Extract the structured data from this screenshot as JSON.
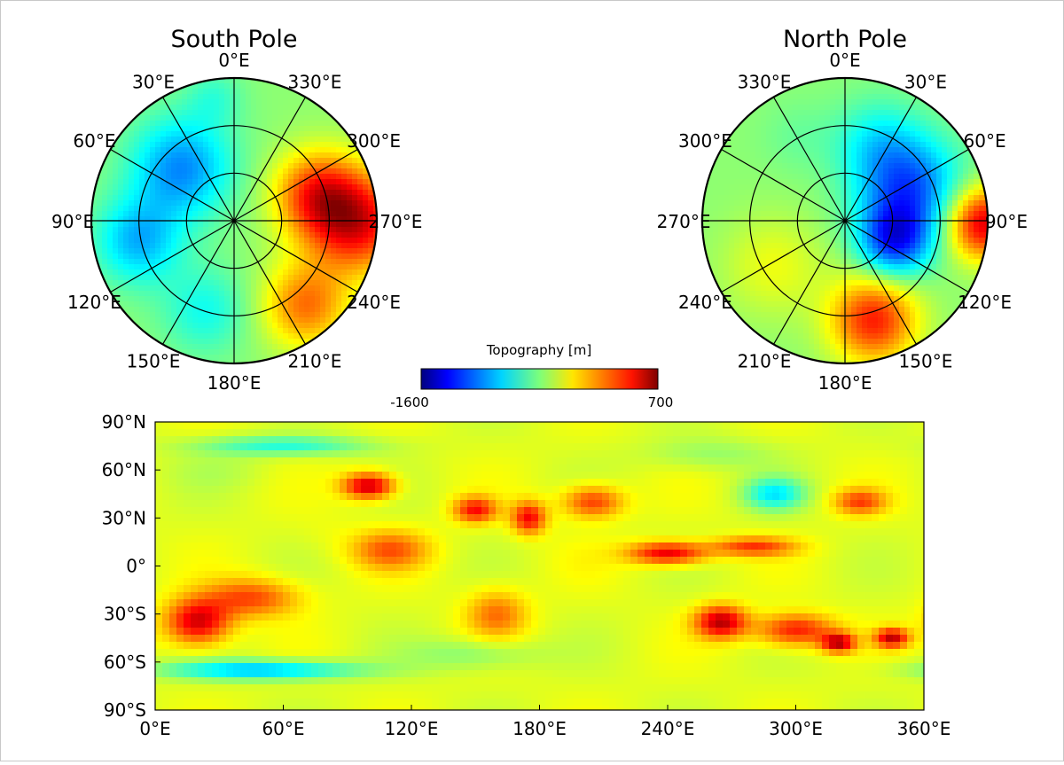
{
  "chart_data": [
    {
      "type": "polar-map",
      "title": "South Pole",
      "colorscale": "jet",
      "ring_count": 3,
      "spoke_step_degrees": 30,
      "angle_labels": [
        "0°E",
        "30°E",
        "60°E",
        "90°E",
        "120°E",
        "150°E",
        "180°E",
        "210°E",
        "240°E",
        "270°E",
        "300°E",
        "330°E"
      ],
      "angle_values": [
        0,
        30,
        60,
        90,
        120,
        150,
        180,
        210,
        240,
        270,
        300,
        330
      ],
      "blobs": [
        {
          "lon": 270,
          "r": 0.85,
          "value": 420,
          "spread": 0.35
        },
        {
          "lon": 290,
          "r": 0.6,
          "value": 250,
          "spread": 0.3
        },
        {
          "lon": 45,
          "r": 0.55,
          "value": -1000,
          "spread": 0.35
        },
        {
          "lon": 100,
          "r": 0.7,
          "value": -900,
          "spread": 0.3
        },
        {
          "lon": 160,
          "r": 0.65,
          "value": -700,
          "spread": 0.3
        },
        {
          "lon": 220,
          "r": 0.75,
          "value": 150,
          "spread": 0.3
        },
        {
          "lon": 10,
          "r": 0.9,
          "value": -600,
          "spread": 0.2
        }
      ]
    },
    {
      "type": "polar-map",
      "title": "North Pole",
      "colorscale": "jet",
      "ring_count": 3,
      "spoke_step_degrees": 30,
      "angle_labels": [
        "0°E",
        "30°E",
        "60°E",
        "90°E",
        "120°E",
        "150°E",
        "180°E",
        "210°E",
        "240°E",
        "270°E",
        "300°E",
        "330°E"
      ],
      "angle_values": [
        0,
        30,
        60,
        90,
        120,
        150,
        180,
        210,
        240,
        270,
        300,
        330
      ],
      "blobs": [
        {
          "lon": 90,
          "r": 0.95,
          "value": 500,
          "spread": 0.25
        },
        {
          "lon": 165,
          "r": 0.7,
          "value": 350,
          "spread": 0.3
        },
        {
          "lon": 60,
          "r": 0.5,
          "value": -1100,
          "spread": 0.35
        },
        {
          "lon": 110,
          "r": 0.35,
          "value": -1200,
          "spread": 0.25
        },
        {
          "lon": 20,
          "r": 0.6,
          "value": -700,
          "spread": 0.3
        },
        {
          "lon": 330,
          "r": 0.7,
          "value": -500,
          "spread": 0.25
        },
        {
          "lon": 240,
          "r": 0.6,
          "value": -200,
          "spread": 0.35
        }
      ]
    },
    {
      "type": "heatmap",
      "title": "Topography [m]",
      "colorscale": "jet",
      "colorbar_range": [
        -1600,
        700
      ],
      "colorbar_labels": {
        "min": "-1600",
        "max": "700"
      },
      "x_range": [
        0,
        360
      ],
      "y_range": [
        -90,
        90
      ],
      "x_ticks": [
        0,
        60,
        120,
        180,
        240,
        300,
        360
      ],
      "x_tick_labels": [
        "0°E",
        "60°E",
        "120°E",
        "180°E",
        "240°E",
        "300°E",
        "360°E"
      ],
      "y_ticks": [
        90,
        60,
        30,
        0,
        -30,
        -60,
        -90
      ],
      "y_tick_labels": [
        "90°N",
        "60°N",
        "30°N",
        "0°",
        "30°S",
        "60°S",
        "90°S"
      ],
      "features": [
        {
          "lon": 20,
          "lat": -35,
          "value": 520,
          "sx": 15,
          "sy": 14
        },
        {
          "lon": 45,
          "lat": -20,
          "value": 250,
          "sx": 22,
          "sy": 12
        },
        {
          "lon": 100,
          "lat": 50,
          "value": 560,
          "sx": 12,
          "sy": 8
        },
        {
          "lon": 110,
          "lat": 10,
          "value": 200,
          "sx": 18,
          "sy": 12
        },
        {
          "lon": 150,
          "lat": 35,
          "value": 380,
          "sx": 10,
          "sy": 8
        },
        {
          "lon": 160,
          "lat": -30,
          "value": 150,
          "sx": 14,
          "sy": 15
        },
        {
          "lon": 175,
          "lat": 30,
          "value": 420,
          "sx": 8,
          "sy": 10
        },
        {
          "lon": 205,
          "lat": 40,
          "value": 300,
          "sx": 14,
          "sy": 10
        },
        {
          "lon": 240,
          "lat": 8,
          "value": 480,
          "sx": 18,
          "sy": 7
        },
        {
          "lon": 280,
          "lat": 12,
          "value": 280,
          "sx": 20,
          "sy": 6
        },
        {
          "lon": 265,
          "lat": -35,
          "value": 560,
          "sx": 12,
          "sy": 10
        },
        {
          "lon": 300,
          "lat": -40,
          "value": 380,
          "sx": 18,
          "sy": 10
        },
        {
          "lon": 320,
          "lat": -48,
          "value": 520,
          "sx": 8,
          "sy": 6
        },
        {
          "lon": 345,
          "lat": -45,
          "value": 520,
          "sx": 8,
          "sy": 6
        },
        {
          "lon": 330,
          "lat": 40,
          "value": 250,
          "sx": 12,
          "sy": 8
        },
        {
          "lon": 290,
          "lat": 45,
          "value": -750,
          "sx": 14,
          "sy": 10
        },
        {
          "lon": 60,
          "lat": 75,
          "value": -650,
          "sx": 40,
          "sy": 6
        },
        {
          "lon": 30,
          "lat": 60,
          "value": -300,
          "sx": 25,
          "sy": 12
        },
        {
          "lon": 260,
          "lat": 70,
          "value": -400,
          "sx": 30,
          "sy": 10
        },
        {
          "lon": 50,
          "lat": -65,
          "value": -900,
          "sx": 45,
          "sy": 6
        },
        {
          "lon": 150,
          "lat": -55,
          "value": -450,
          "sx": 30,
          "sy": 10
        },
        {
          "lon": 200,
          "lat": 5,
          "value": -200,
          "sx": 18,
          "sy": 15
        },
        {
          "lon": 80,
          "lat": 20,
          "value": -200,
          "sx": 15,
          "sy": 12
        }
      ]
    }
  ]
}
